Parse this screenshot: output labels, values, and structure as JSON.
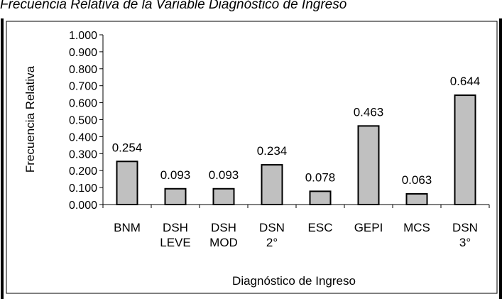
{
  "page": {
    "title": "Frecuencia Relativa de la Variable Diagnóstico de Ingreso"
  },
  "chart_data": {
    "type": "bar",
    "title": "",
    "xlabel": "Diagnóstico de Ingreso",
    "ylabel": "Frecuencia Relativa",
    "categories": [
      [
        "BNM"
      ],
      [
        "DSH",
        "LEVE"
      ],
      [
        "DSH",
        "MOD"
      ],
      [
        "DSN",
        "2°"
      ],
      [
        "ESC"
      ],
      [
        "GEPI"
      ],
      [
        "MCS"
      ],
      [
        "DSN",
        "3°"
      ]
    ],
    "values": [
      0.254,
      0.093,
      0.093,
      0.234,
      0.078,
      0.463,
      0.063,
      0.644
    ],
    "data_labels": [
      "0.254",
      "0.093",
      "0.093",
      "0.234",
      "0.078",
      "0.463",
      "0.063",
      "0.644"
    ],
    "yticks": [
      "0.000",
      "0.100",
      "0.200",
      "0.300",
      "0.400",
      "0.500",
      "0.600",
      "0.700",
      "0.800",
      "0.900",
      "1.000"
    ],
    "ylim": [
      0,
      1
    ],
    "grid": false,
    "legend": "none",
    "colors": {
      "bar_fill": "#c0c0c0",
      "bar_stroke": "#000000",
      "frame": "#000000"
    }
  }
}
